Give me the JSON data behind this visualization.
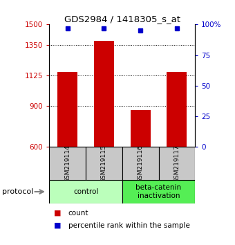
{
  "title": "GDS2984 / 1418305_s_at",
  "samples": [
    "GSM219114",
    "GSM219115",
    "GSM219116",
    "GSM219117"
  ],
  "bar_values": [
    1150,
    1380,
    870,
    1150
  ],
  "bar_color": "#cc0000",
  "bar_base": 600,
  "percentile_values": [
    97,
    97,
    95,
    97
  ],
  "percentile_color": "#0000cc",
  "ylim_left": [
    600,
    1500
  ],
  "ylim_right": [
    0,
    100
  ],
  "yticks_left": [
    600,
    900,
    1125,
    1350,
    1500
  ],
  "ytick_labels_left": [
    "600",
    "900",
    "1125",
    "1350",
    "1500"
  ],
  "yticks_right": [
    0,
    25,
    50,
    75,
    100
  ],
  "ytick_labels_right": [
    "0",
    "25",
    "50",
    "75",
    "100%"
  ],
  "left_tick_color": "#cc0000",
  "right_tick_color": "#0000cc",
  "groups": [
    {
      "label": "control",
      "samples": [
        0,
        1
      ],
      "color": "#bbffbb"
    },
    {
      "label": "beta-catenin\ninactivation",
      "samples": [
        2,
        3
      ],
      "color": "#55ee55"
    }
  ],
  "protocol_label": "protocol",
  "legend_count_label": "count",
  "legend_pct_label": "percentile rank within the sample",
  "grid_yticks": [
    900,
    1125,
    1350
  ],
  "bar_width": 0.55
}
